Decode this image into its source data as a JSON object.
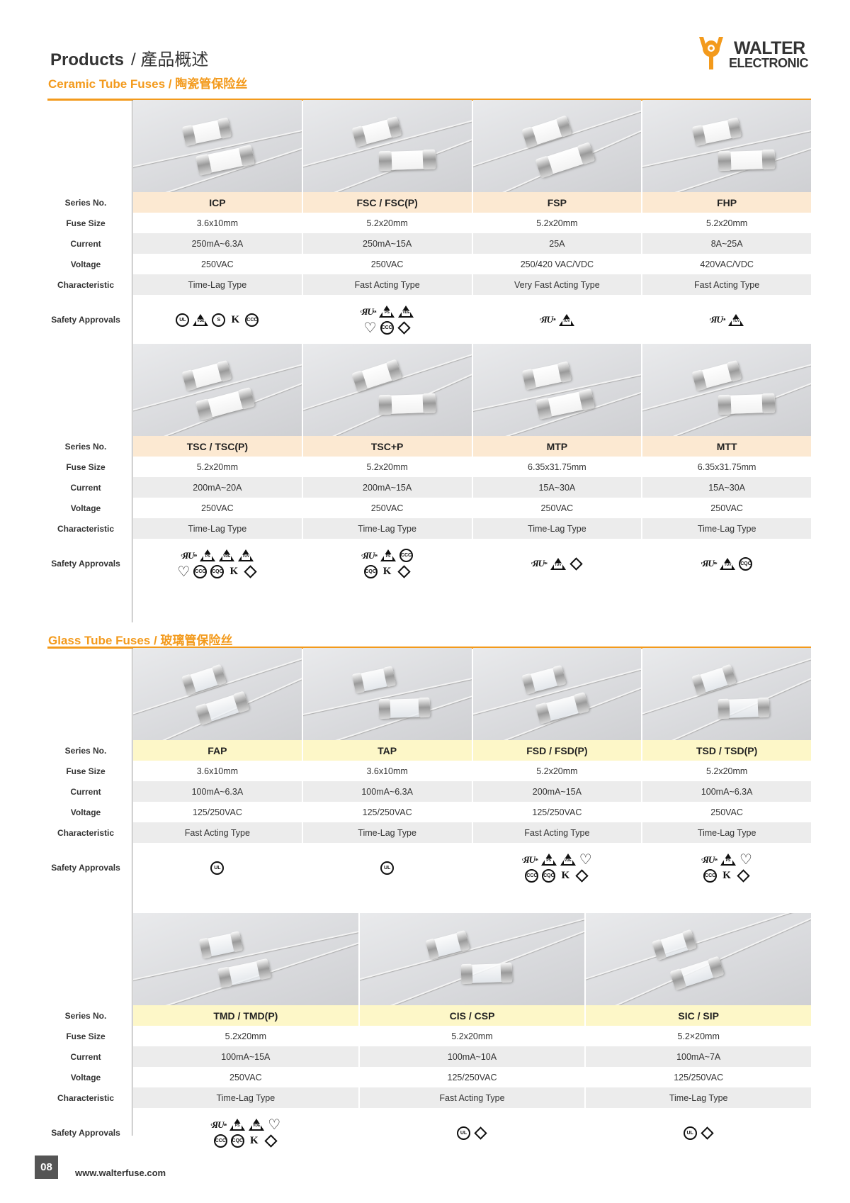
{
  "header": {
    "title": "Products",
    "title_cn": "/ 產品概述"
  },
  "logo": {
    "line1": "WALTER",
    "line2": "ELECTRONIC",
    "color": "#f39a1c"
  },
  "row_labels": {
    "series": "Series No.",
    "size": "Fuse Size",
    "current": "Current",
    "voltage": "Voltage",
    "characteristic": "Characteristic",
    "safety": "Safety Approvals"
  },
  "sections": [
    {
      "title": "Ceramic Tube Fuses / 陶瓷管保险丝",
      "kind": "ceramic",
      "header_color": "#fce9d2",
      "blocks": [
        {
          "products": [
            {
              "series": "ICP",
              "size": "3.6x10mm",
              "current": "250mA~6.3A",
              "voltage": "250VAC",
              "characteristic": "Time-Lag Type",
              "approvals": [
                [
                  "ul-c-us",
                  "vde",
                  "s-mark",
                  "kc",
                  "ccc"
                ]
              ]
            },
            {
              "series": "FSC / FSC(P)",
              "size": "5.2x20mm",
              "current": "250mA~15A",
              "voltage": "250VAC",
              "characteristic": "Fast Acting Type",
              "approvals": [
                [
                  "cur-us",
                  "pse",
                  "vde"
                ],
                [
                  "bsi",
                  "ccc",
                  "jet"
                ]
              ]
            },
            {
              "series": "FSP",
              "size": "5.2x20mm",
              "current": "25A",
              "voltage": "250/420 VAC/VDC",
              "characteristic": "Very Fast Acting Type",
              "approvals": [
                [
                  "cur-us",
                  "tuv"
                ]
              ]
            },
            {
              "series": "FHP",
              "size": "5.2x20mm",
              "current": "8A~25A",
              "voltage": "420VAC/VDC",
              "characteristic": "Fast Acting Type",
              "approvals": [
                [
                  "cur-us",
                  "tuv"
                ]
              ]
            }
          ]
        },
        {
          "products": [
            {
              "series": "TSC / TSC(P)",
              "size": "5.2x20mm",
              "current": "200mA~20A",
              "voltage": "250VAC",
              "characteristic": "Time-Lag Type",
              "approvals": [
                [
                  "cur-us",
                  "pse",
                  "vde",
                  "tuv"
                ],
                [
                  "bsi",
                  "ccc",
                  "cqc",
                  "kc",
                  "jet"
                ]
              ]
            },
            {
              "series": "TSC+P",
              "size": "5.2x20mm",
              "current": "200mA~15A",
              "voltage": "250VAC",
              "characteristic": "Time-Lag Type",
              "approvals": [
                [
                  "cur-us",
                  "pse",
                  "ccc"
                ],
                [
                  "cqc",
                  "kc",
                  "jet"
                ]
              ]
            },
            {
              "series": "MTP",
              "size": "6.35x31.75mm",
              "current": "15A~30A",
              "voltage": "250VAC",
              "characteristic": "Time-Lag Type",
              "approvals": [
                [
                  "cur-us",
                  "tuv",
                  "jet"
                ]
              ]
            },
            {
              "series": "MTT",
              "size": "6.35x31.75mm",
              "current": "15A~30A",
              "voltage": "250VAC",
              "characteristic": "Time-Lag Type",
              "approvals": [
                [
                  "cur-us",
                  "tuv",
                  "cqc"
                ]
              ]
            }
          ]
        }
      ]
    },
    {
      "title": "Glass Tube Fuses / 玻璃管保险丝",
      "kind": "glass",
      "header_color": "#fdf7c8",
      "blocks": [
        {
          "products": [
            {
              "series": "FAP",
              "size": "3.6x10mm",
              "current": "100mA~6.3A",
              "voltage": "125/250VAC",
              "characteristic": "Fast Acting Type",
              "approvals": [
                [
                  "ul-c-us"
                ]
              ]
            },
            {
              "series": "TAP",
              "size": "3.6x10mm",
              "current": "100mA~6.3A",
              "voltage": "125/250VAC",
              "characteristic": "Time-Lag Type",
              "approvals": [
                [
                  "ul-c-us"
                ]
              ]
            },
            {
              "series": "FSD / FSD(P)",
              "size": "5.2x20mm",
              "current": "200mA~15A",
              "voltage": "125/250VAC",
              "characteristic": "Fast Acting Type",
              "approvals": [
                [
                  "cur-us",
                  "pse",
                  "vde",
                  "bsi"
                ],
                [
                  "ccc",
                  "cqc",
                  "kc",
                  "jet"
                ]
              ]
            },
            {
              "series": "TSD / TSD(P)",
              "size": "5.2x20mm",
              "current": "100mA~6.3A",
              "voltage": "250VAC",
              "characteristic": "Time-Lag Type",
              "approvals": [
                [
                  "cur-us",
                  "pse",
                  "bsi"
                ],
                [
                  "ccc",
                  "kc",
                  "jet"
                ]
              ]
            }
          ]
        },
        {
          "products": [
            {
              "series": "TMD / TMD(P)",
              "size": "5.2x20mm",
              "current": "100mA~15A",
              "voltage": "250VAC",
              "characteristic": "Time-Lag Type",
              "approvals": [
                [
                  "cur-us",
                  "pse",
                  "vde",
                  "bsi"
                ],
                [
                  "ccc",
                  "cqc",
                  "kc",
                  "jet"
                ]
              ]
            },
            {
              "series": "CIS / CSP",
              "size": "5.2x20mm",
              "current": "100mA~10A",
              "voltage": "125/250VAC",
              "characteristic": "Fast Acting Type",
              "approvals": [
                [
                  "ul-c-us",
                  "jet"
                ]
              ]
            },
            {
              "series": "SIC / SIP",
              "size": "5.2×20mm",
              "current": "100mA~7A",
              "voltage": "125/250VAC",
              "characteristic": "Time-Lag Type",
              "approvals": [
                [
                  "ul",
                  "jet"
                ]
              ]
            }
          ]
        }
      ]
    }
  ],
  "footer": {
    "page": "08",
    "url": "www.walterfuse.com"
  }
}
